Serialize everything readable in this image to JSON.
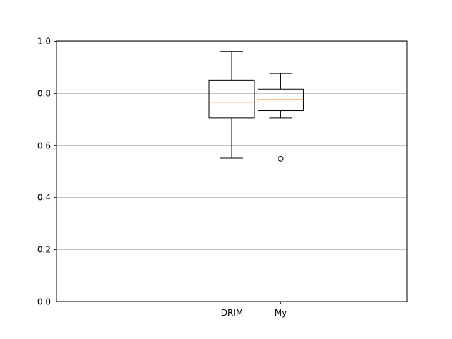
{
  "chart_data": {
    "type": "box",
    "title": "",
    "xlabel": "",
    "ylabel": "",
    "ylim": [
      0.0,
      1.0
    ],
    "yticks": [
      0.0,
      0.2,
      0.4,
      0.6,
      0.8,
      1.0
    ],
    "ytick_labels": [
      "0.0",
      "0.2",
      "0.4",
      "0.6",
      "0.8",
      "1.0"
    ],
    "categories": [
      "DRIM",
      "My"
    ],
    "x_positions": [
      1.0,
      1.21
    ],
    "xlim": [
      0.25,
      1.75
    ],
    "grid": "horizontal",
    "boxes": [
      {
        "whisker_low": 0.55,
        "q1": 0.705,
        "median": 0.765,
        "q3": 0.85,
        "whisker_high": 0.96,
        "outliers": []
      },
      {
        "whisker_low": 0.705,
        "q1": 0.733,
        "median": 0.775,
        "q3": 0.815,
        "whisker_high": 0.875,
        "outliers": [
          0.548
        ]
      }
    ],
    "colors": {
      "box": "#000000",
      "median": "#ff7f0e",
      "grid": "#b0b0b0"
    }
  }
}
